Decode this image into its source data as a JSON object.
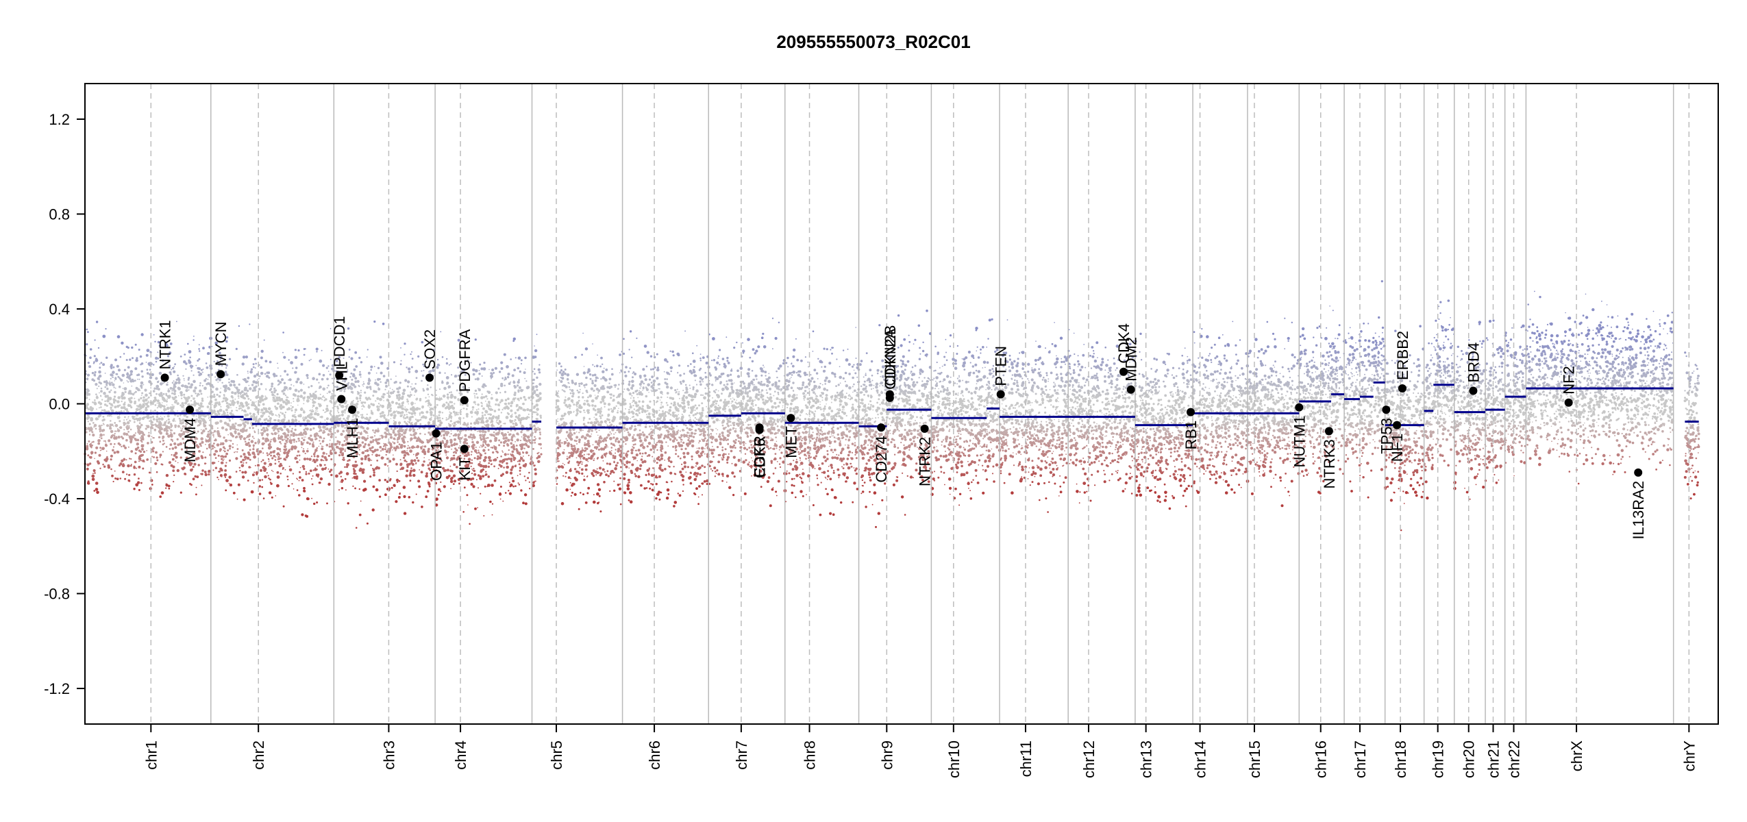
{
  "chart_data": {
    "type": "scatter",
    "title": "209555550073_R02C01",
    "xlabel": "",
    "ylabel": "",
    "ylim": [
      -1.35,
      1.35
    ],
    "yticks": [
      -1.2,
      -0.8,
      -0.4,
      0.0,
      0.4,
      0.8,
      1.2
    ],
    "ytick_labels": [
      "-1.2",
      "-0.8",
      "-0.4",
      "0.0",
      "0.4",
      "0.8",
      "1.2"
    ],
    "xlim": [
      0,
      100
    ],
    "grid": false,
    "colors": {
      "gain": "#8a8fc6",
      "loss": "#b23b3b",
      "neutral": "#c8c8c8",
      "segment": "#00008b",
      "gene_point": "#000000",
      "boundary": "#b9b9b9",
      "centromere": "#bdbdbd"
    },
    "chromosomes": [
      {
        "name": "chr1",
        "start": 0.0,
        "end": 7.71,
        "centromere": 4.04
      },
      {
        "name": "chr2",
        "start": 7.71,
        "end": 15.24,
        "centromere": 10.62
      },
      {
        "name": "chr3",
        "start": 15.24,
        "end": 21.44,
        "centromere": 18.6
      },
      {
        "name": "chr4",
        "start": 21.44,
        "end": 27.37,
        "centromere": 22.99
      },
      {
        "name": "chr5",
        "start": 27.37,
        "end": 32.91,
        "centromere": 28.86
      },
      {
        "name": "chr6",
        "start": 32.91,
        "end": 38.18,
        "centromere": 34.86
      },
      {
        "name": "chr7",
        "start": 38.18,
        "end": 48.34,
        "centromere": 40.18
      },
      {
        "name": "chr8",
        "start": 42.86,
        "end": 47.38,
        "centromere": 44.36
      },
      {
        "name": "chr9",
        "start": 47.38,
        "end": 51.82,
        "centromere": 49.09
      },
      {
        "name": "chr10",
        "start": 51.82,
        "end": 56.0,
        "centromere": 53.18
      },
      {
        "name": "chr11",
        "start": 56.0,
        "end": 60.2,
        "centromere": 57.59
      },
      {
        "name": "chr12",
        "start": 60.2,
        "end": 64.3,
        "centromere": 61.45
      },
      {
        "name": "chr13",
        "start": 64.3,
        "end": 67.83,
        "centromere": 64.96
      },
      {
        "name": "chr14",
        "start": 67.83,
        "end": 71.18,
        "centromere": 68.27
      },
      {
        "name": "chr15",
        "start": 71.18,
        "end": 74.34,
        "centromere": 71.6
      },
      {
        "name": "chr16",
        "start": 74.34,
        "end": 77.1,
        "centromere": 75.66
      },
      {
        "name": "chr17",
        "start": 77.1,
        "end": 79.6,
        "centromere": 78.06
      },
      {
        "name": "chr18",
        "start": 79.6,
        "end": 81.99,
        "centromere": 80.54
      },
      {
        "name": "chr19",
        "start": 81.99,
        "end": 83.84,
        "centromere": 82.83
      },
      {
        "name": "chr20",
        "start": 83.84,
        "end": 85.74,
        "centromere": 84.72
      },
      {
        "name": "chr21",
        "start": 85.74,
        "end": 86.94,
        "centromere": 86.22
      },
      {
        "name": "chr22",
        "start": 86.94,
        "end": 88.23,
        "centromere": 87.48
      },
      {
        "name": "chrX",
        "start": 88.23,
        "end": 97.26,
        "centromere": 91.32
      },
      {
        "name": "chrY",
        "start": 97.26,
        "end": 100.0,
        "centromere": 98.21
      }
    ],
    "segments": [
      {
        "x0": 0.0,
        "x1": 7.71,
        "y": -0.04
      },
      {
        "x0": 7.71,
        "x1": 9.71,
        "y": -0.055
      },
      {
        "x0": 9.71,
        "x1": 10.23,
        "y": -0.065
      },
      {
        "x0": 10.23,
        "x1": 15.24,
        "y": -0.085
      },
      {
        "x0": 15.24,
        "x1": 18.6,
        "y": -0.08
      },
      {
        "x0": 18.6,
        "x1": 21.44,
        "y": -0.095
      },
      {
        "x0": 21.44,
        "x1": 27.37,
        "y": -0.105
      },
      {
        "x0": 27.37,
        "x1": 27.94,
        "y": -0.075
      },
      {
        "x0": 28.86,
        "x1": 32.91,
        "y": -0.1
      },
      {
        "x0": 32.91,
        "x1": 38.18,
        "y": -0.08
      },
      {
        "x0": 38.18,
        "x1": 40.18,
        "y": -0.05
      },
      {
        "x0": 40.18,
        "x1": 42.86,
        "y": -0.04
      },
      {
        "x0": 42.86,
        "x1": 47.38,
        "y": -0.08
      },
      {
        "x0": 47.38,
        "x1": 49.09,
        "y": -0.095
      },
      {
        "x0": 49.09,
        "x1": 51.82,
        "y": -0.025
      },
      {
        "x0": 51.82,
        "x1": 55.21,
        "y": -0.06
      },
      {
        "x0": 55.21,
        "x1": 56.0,
        "y": -0.02
      },
      {
        "x0": 56.0,
        "x1": 64.3,
        "y": -0.055
      },
      {
        "x0": 64.3,
        "x1": 67.83,
        "y": -0.09
      },
      {
        "x0": 67.83,
        "x1": 71.18,
        "y": -0.04
      },
      {
        "x0": 71.18,
        "x1": 74.34,
        "y": -0.04
      },
      {
        "x0": 74.34,
        "x1": 76.3,
        "y": 0.01
      },
      {
        "x0": 76.3,
        "x1": 77.1,
        "y": 0.04
      },
      {
        "x0": 77.1,
        "x1": 78.06,
        "y": 0.02
      },
      {
        "x0": 78.06,
        "x1": 78.89,
        "y": 0.03
      },
      {
        "x0": 78.89,
        "x1": 79.6,
        "y": 0.09
      },
      {
        "x0": 79.6,
        "x1": 81.99,
        "y": -0.09
      },
      {
        "x0": 81.99,
        "x1": 82.56,
        "y": -0.03
      },
      {
        "x0": 82.56,
        "x1": 83.84,
        "y": 0.08
      },
      {
        "x0": 83.84,
        "x1": 85.74,
        "y": -0.035
      },
      {
        "x0": 85.74,
        "x1": 86.94,
        "y": -0.025
      },
      {
        "x0": 86.94,
        "x1": 88.23,
        "y": 0.03
      },
      {
        "x0": 88.23,
        "x1": 97.26,
        "y": 0.065
      },
      {
        "x0": 97.96,
        "x1": 98.81,
        "y": -0.075
      }
    ],
    "genes": [
      {
        "name": "NTRK1",
        "x": 4.89,
        "y": 0.11,
        "label_side": "above"
      },
      {
        "name": "MDM4",
        "x": 6.42,
        "y": -0.025,
        "label_side": "below"
      },
      {
        "name": "MYCN",
        "x": 8.31,
        "y": 0.125,
        "label_side": "above"
      },
      {
        "name": "PDCD1",
        "x": 15.57,
        "y": 0.12,
        "label_side": "above"
      },
      {
        "name": "VHL",
        "x": 15.7,
        "y": 0.02,
        "label_side": "above"
      },
      {
        "name": "MLH1",
        "x": 16.36,
        "y": -0.025,
        "label_side": "below"
      },
      {
        "name": "SOX2",
        "x": 21.1,
        "y": 0.11,
        "label_side": "above"
      },
      {
        "name": "OPA1",
        "x": 21.5,
        "y": -0.125,
        "label_side": "below"
      },
      {
        "name": "PDGFRA",
        "x": 23.23,
        "y": 0.015,
        "label_side": "above"
      },
      {
        "name": "KIT",
        "x": 23.23,
        "y": -0.19,
        "label_side": "below"
      },
      {
        "name": "EGFR",
        "x": 41.3,
        "y": -0.1,
        "label_side": "below"
      },
      {
        "name": "CDK6",
        "x": 41.3,
        "y": -0.11,
        "label_side": "below"
      },
      {
        "name": "MET",
        "x": 43.22,
        "y": -0.06,
        "label_side": "below"
      },
      {
        "name": "CD274",
        "x": 48.75,
        "y": -0.1,
        "label_side": "below"
      },
      {
        "name": "CDKN2A",
        "x": 49.28,
        "y": 0.025,
        "label_side": "above"
      },
      {
        "name": "CDKN2B",
        "x": 49.28,
        "y": 0.04,
        "label_side": "above"
      },
      {
        "name": "NTRK2",
        "x": 51.41,
        "y": -0.105,
        "label_side": "below"
      },
      {
        "name": "PTEN",
        "x": 56.07,
        "y": 0.04,
        "label_side": "above"
      },
      {
        "name": "CDK4",
        "x": 63.59,
        "y": 0.135,
        "label_side": "above"
      },
      {
        "name": "MDM2",
        "x": 64.04,
        "y": 0.06,
        "label_side": "above"
      },
      {
        "name": "RB1",
        "x": 67.7,
        "y": -0.035,
        "label_side": "below"
      },
      {
        "name": "NUTM1",
        "x": 74.34,
        "y": -0.015,
        "label_side": "below"
      },
      {
        "name": "NTRK3",
        "x": 76.17,
        "y": -0.115,
        "label_side": "below"
      },
      {
        "name": "TP53",
        "x": 79.67,
        "y": -0.025,
        "label_side": "below"
      },
      {
        "name": "NF1",
        "x": 80.33,
        "y": -0.09,
        "label_side": "below"
      },
      {
        "name": "ERBB2",
        "x": 80.66,
        "y": 0.065,
        "label_side": "above"
      },
      {
        "name": "BRD4",
        "x": 85.0,
        "y": 0.055,
        "label_side": "above"
      },
      {
        "name": "NF2",
        "x": 90.84,
        "y": 0.005,
        "label_side": "above"
      },
      {
        "name": "IL13RA2",
        "x": 95.1,
        "y": -0.29,
        "label_side": "below"
      }
    ]
  }
}
